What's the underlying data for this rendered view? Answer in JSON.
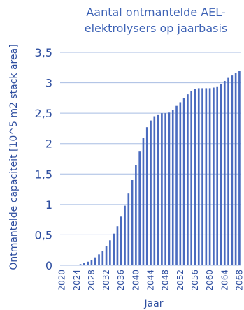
{
  "chart_data": {
    "type": "bar",
    "title_lines": [
      "Aantal ontmantelde AEL-",
      "elektrolysers op jaarbasis"
    ],
    "xlabel": "Jaar",
    "ylabel": "Ontmantelde capaciteit [10^5 m2 stack area]",
    "ylim": [
      0,
      3.5
    ],
    "ytick_labels": [
      "0",
      "0,5",
      "1",
      "1,5",
      "2",
      "2,5",
      "3",
      "3,5"
    ],
    "ytick_values": [
      0,
      0.5,
      1,
      1.5,
      2,
      2.5,
      3,
      3.5
    ],
    "xtick_labels": [
      "2020",
      "2024",
      "2028",
      "2032",
      "2036",
      "2040",
      "2044",
      "2048",
      "2052",
      "2056",
      "2060",
      "2064",
      "2068"
    ],
    "categories": [
      2020,
      2021,
      2022,
      2023,
      2024,
      2025,
      2026,
      2027,
      2028,
      2029,
      2030,
      2031,
      2032,
      2033,
      2034,
      2035,
      2036,
      2037,
      2038,
      2039,
      2040,
      2041,
      2042,
      2043,
      2044,
      2045,
      2046,
      2047,
      2048,
      2049,
      2050,
      2051,
      2052,
      2053,
      2054,
      2055,
      2056,
      2057,
      2058,
      2059,
      2060,
      2061,
      2062,
      2063,
      2064,
      2065,
      2066,
      2067,
      2068
    ],
    "values": [
      0.01,
      0.01,
      0.01,
      0.01,
      0.01,
      0.02,
      0.04,
      0.06,
      0.09,
      0.13,
      0.18,
      0.24,
      0.32,
      0.41,
      0.52,
      0.64,
      0.8,
      0.98,
      1.18,
      1.4,
      1.65,
      1.88,
      2.1,
      2.27,
      2.38,
      2.45,
      2.48,
      2.5,
      2.5,
      2.51,
      2.55,
      2.62,
      2.68,
      2.75,
      2.81,
      2.86,
      2.9,
      2.91,
      2.91,
      2.91,
      2.91,
      2.92,
      2.94,
      2.98,
      3.03,
      3.08,
      3.12,
      3.16,
      3.19
    ],
    "grid": true,
    "bar_color": "#4a6bbf",
    "grid_color": "#a8bde3",
    "text_color": "#2f4fa0"
  }
}
